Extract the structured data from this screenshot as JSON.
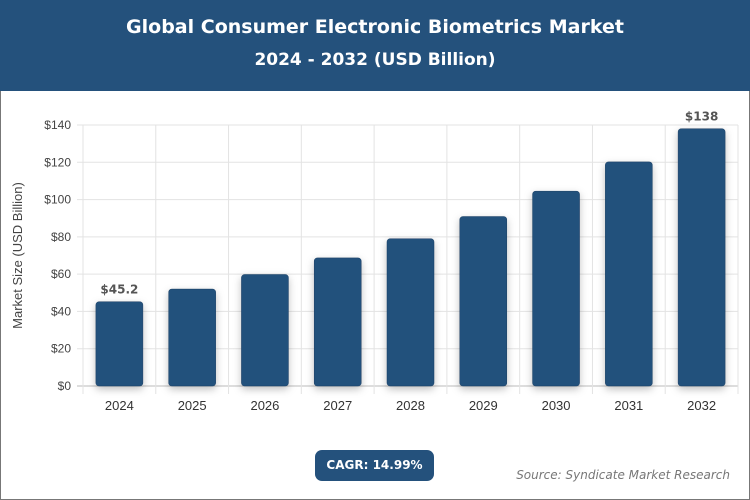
{
  "header": {
    "title": "Global Consumer Electronic Biometrics Market",
    "subtitle": "2024 - 2032 (USD Billion)"
  },
  "chart_data": {
    "type": "bar",
    "categories": [
      "2024",
      "2025",
      "2026",
      "2027",
      "2028",
      "2029",
      "2030",
      "2031",
      "2032"
    ],
    "values": [
      45.2,
      52.0,
      59.8,
      68.7,
      79.0,
      90.9,
      104.5,
      120.2,
      138
    ],
    "data_labels": {
      "0": "$45.2",
      "8": "$138"
    },
    "ylabel": "Market Size (USD Billion)",
    "xlabel": "",
    "ylim": [
      0,
      140
    ],
    "yticks": [
      "$0",
      "$20",
      "$40",
      "$60",
      "$80",
      "$100",
      "$120",
      "$140"
    ],
    "grid": true,
    "bar_color": "#24517c"
  },
  "footer": {
    "cagr": "CAGR: 14.99%",
    "source": "Source: Syndicate Market Research"
  }
}
